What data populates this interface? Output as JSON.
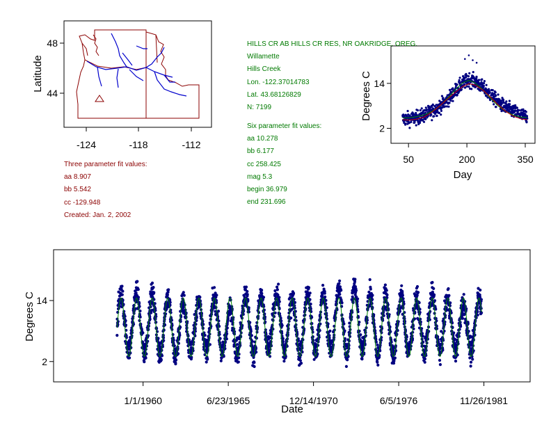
{
  "map": {
    "ylabel": "Latitude",
    "yticks": [
      "48",
      "44"
    ],
    "xticks": [
      "-124",
      "-118",
      "-112"
    ],
    "colors": {
      "border": "#8b0000",
      "rivers": "#0000cc",
      "site": "#8b0000"
    }
  },
  "site_info": {
    "station": "HILLS CR AB HILLS CR RES, NR OAKRIDGE, OREG.",
    "basin": "Willamette",
    "stream": "Hills Creek",
    "lon": "Lon. -122.37014783",
    "lat": "Lat. 43.68126829",
    "n": "N: 7199",
    "six_title": "Six parameter fit values:",
    "six": [
      "aa 10.278",
      "bb 6.177",
      "cc 258.425",
      "mag 5.3",
      "begin 36.979",
      "end 231.696"
    ]
  },
  "three_fit": {
    "title": "Three parameter fit values:",
    "values": [
      "aa 8.907",
      "bb 5.542",
      "cc -129.948"
    ],
    "created": "Created:   Jan. 2, 2002"
  },
  "colors": {
    "points": "#000080",
    "six_fit": "#008000",
    "three_fit": "#cc0000",
    "text_green": "#007a00",
    "text_maroon": "#8b0000"
  },
  "chart_data": [
    {
      "type": "scatter",
      "xlabel": "Day",
      "ylabel": "Degrees C",
      "x_ticks": [
        50,
        200,
        350
      ],
      "y_ticks": [
        2,
        14
      ],
      "xlim": [
        5,
        375
      ],
      "ylim": [
        -2,
        24
      ],
      "series": [
        {
          "type": "scatter",
          "x": [
            35,
            50,
            70,
            90,
            110,
            130,
            150,
            170,
            190,
            205,
            220,
            240,
            260,
            280,
            300,
            320,
            340,
            355
          ],
          "y": [
            4.5,
            4.5,
            4.8,
            5.5,
            6.5,
            7.8,
            9.5,
            12,
            14,
            15,
            14.5,
            13,
            11,
            9,
            7.5,
            6.5,
            5.5,
            5
          ]
        },
        {
          "type": "line",
          "x": [
            35,
            50,
            70,
            90,
            110,
            130,
            150,
            170,
            190,
            205,
            220,
            240,
            260,
            280,
            300,
            320,
            340,
            355
          ],
          "y": [
            4.3,
            4.2,
            4.4,
            5.0,
            6.3,
            8.0,
            9.8,
            11.6,
            13.2,
            13.9,
            13.6,
            12.3,
            10.4,
            8.3,
            6.5,
            5.2,
            4.5,
            4.3
          ]
        },
        {
          "type": "line",
          "x": [
            35,
            50,
            70,
            90,
            110,
            130,
            150,
            170,
            190,
            205,
            220,
            240,
            260,
            280,
            300,
            320,
            340,
            355
          ],
          "y": [
            4.8,
            4.8,
            5.1,
            5.6,
            6.5,
            7.9,
            10.0,
            12.3,
            14.2,
            14.8,
            14.2,
            12.4,
            10.1,
            8.0,
            6.5,
            5.5,
            5.0,
            4.9
          ]
        }
      ]
    },
    {
      "type": "scatter",
      "xlabel": "Date",
      "ylabel": "Degrees C",
      "x_ticks": [
        "1/1/1960",
        "6/23/1965",
        "12/14/1970",
        "6/5/1976",
        "11/26/1981"
      ],
      "y_ticks": [
        2,
        14
      ],
      "xlim": [
        "1954-04-01",
        "1984-11-15"
      ],
      "ylim": [
        -2,
        24
      ],
      "series": [
        {
          "type": "scatter",
          "x_range": [
            "1958-05-01",
            "1981-09-30"
          ],
          "annual_peaks": [
            17.5,
            17.5,
            17.2,
            17.0,
            15.5,
            16.0,
            16.3,
            14.0,
            17.5,
            17.0,
            17.3,
            16.5,
            17.8,
            17.0,
            18.5,
            19.0,
            17.2,
            17.3,
            17.0,
            16.3,
            17.3,
            16.3,
            15.0,
            17.0
          ],
          "annual_minima": [
            1.5,
            2.0,
            1.5,
            0.8,
            1.0,
            2.0,
            2.5,
            1.5,
            2.0,
            1.0,
            2.5,
            1.5,
            1.0,
            2.0,
            2.0,
            1.0,
            2.0,
            0.5,
            1.0,
            2.0,
            1.5,
            2.0,
            2.5,
            1.5
          ]
        },
        {
          "type": "line",
          "annual_peak": 14.5,
          "annual_min": 3.0
        }
      ]
    }
  ]
}
